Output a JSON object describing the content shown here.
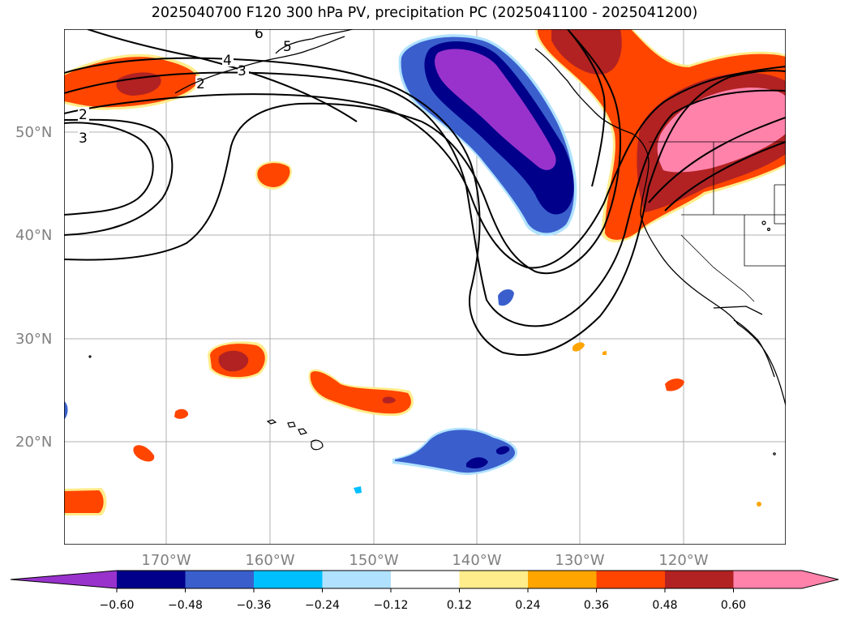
{
  "title": "2025040700 F120 300 hPa PV, precipitation PC (2025041100 - 2025041200)",
  "map": {
    "lat_labels": [
      "50°N",
      "40°N",
      "30°N",
      "20°N"
    ],
    "lon_labels": [
      "170°W",
      "160°W",
      "150°W",
      "140°W",
      "130°W",
      "120°W"
    ],
    "contour_labels": [
      "6",
      "5",
      "4",
      "3",
      "2",
      "2",
      "3"
    ],
    "fill_levels": [
      "-0.60",
      "-0.48",
      "-0.36",
      "-0.24",
      "-0.12",
      "0.12",
      "0.24",
      "0.36",
      "0.48",
      "0.60"
    ]
  },
  "colorbar": {
    "colors": [
      "#9932cc",
      "#00008b",
      "#3a5fcd",
      "#00bfff",
      "#b0e2ff",
      "#ffffff",
      "#ffec8b",
      "#ffa500",
      "#ff4500",
      "#b22222",
      "#ff82ab"
    ],
    "tick_labels": [
      "−0.60",
      "−0.48",
      "−0.36",
      "−0.24",
      "−0.12",
      "0.12",
      "0.24",
      "0.36",
      "0.48",
      "0.60"
    ]
  }
}
